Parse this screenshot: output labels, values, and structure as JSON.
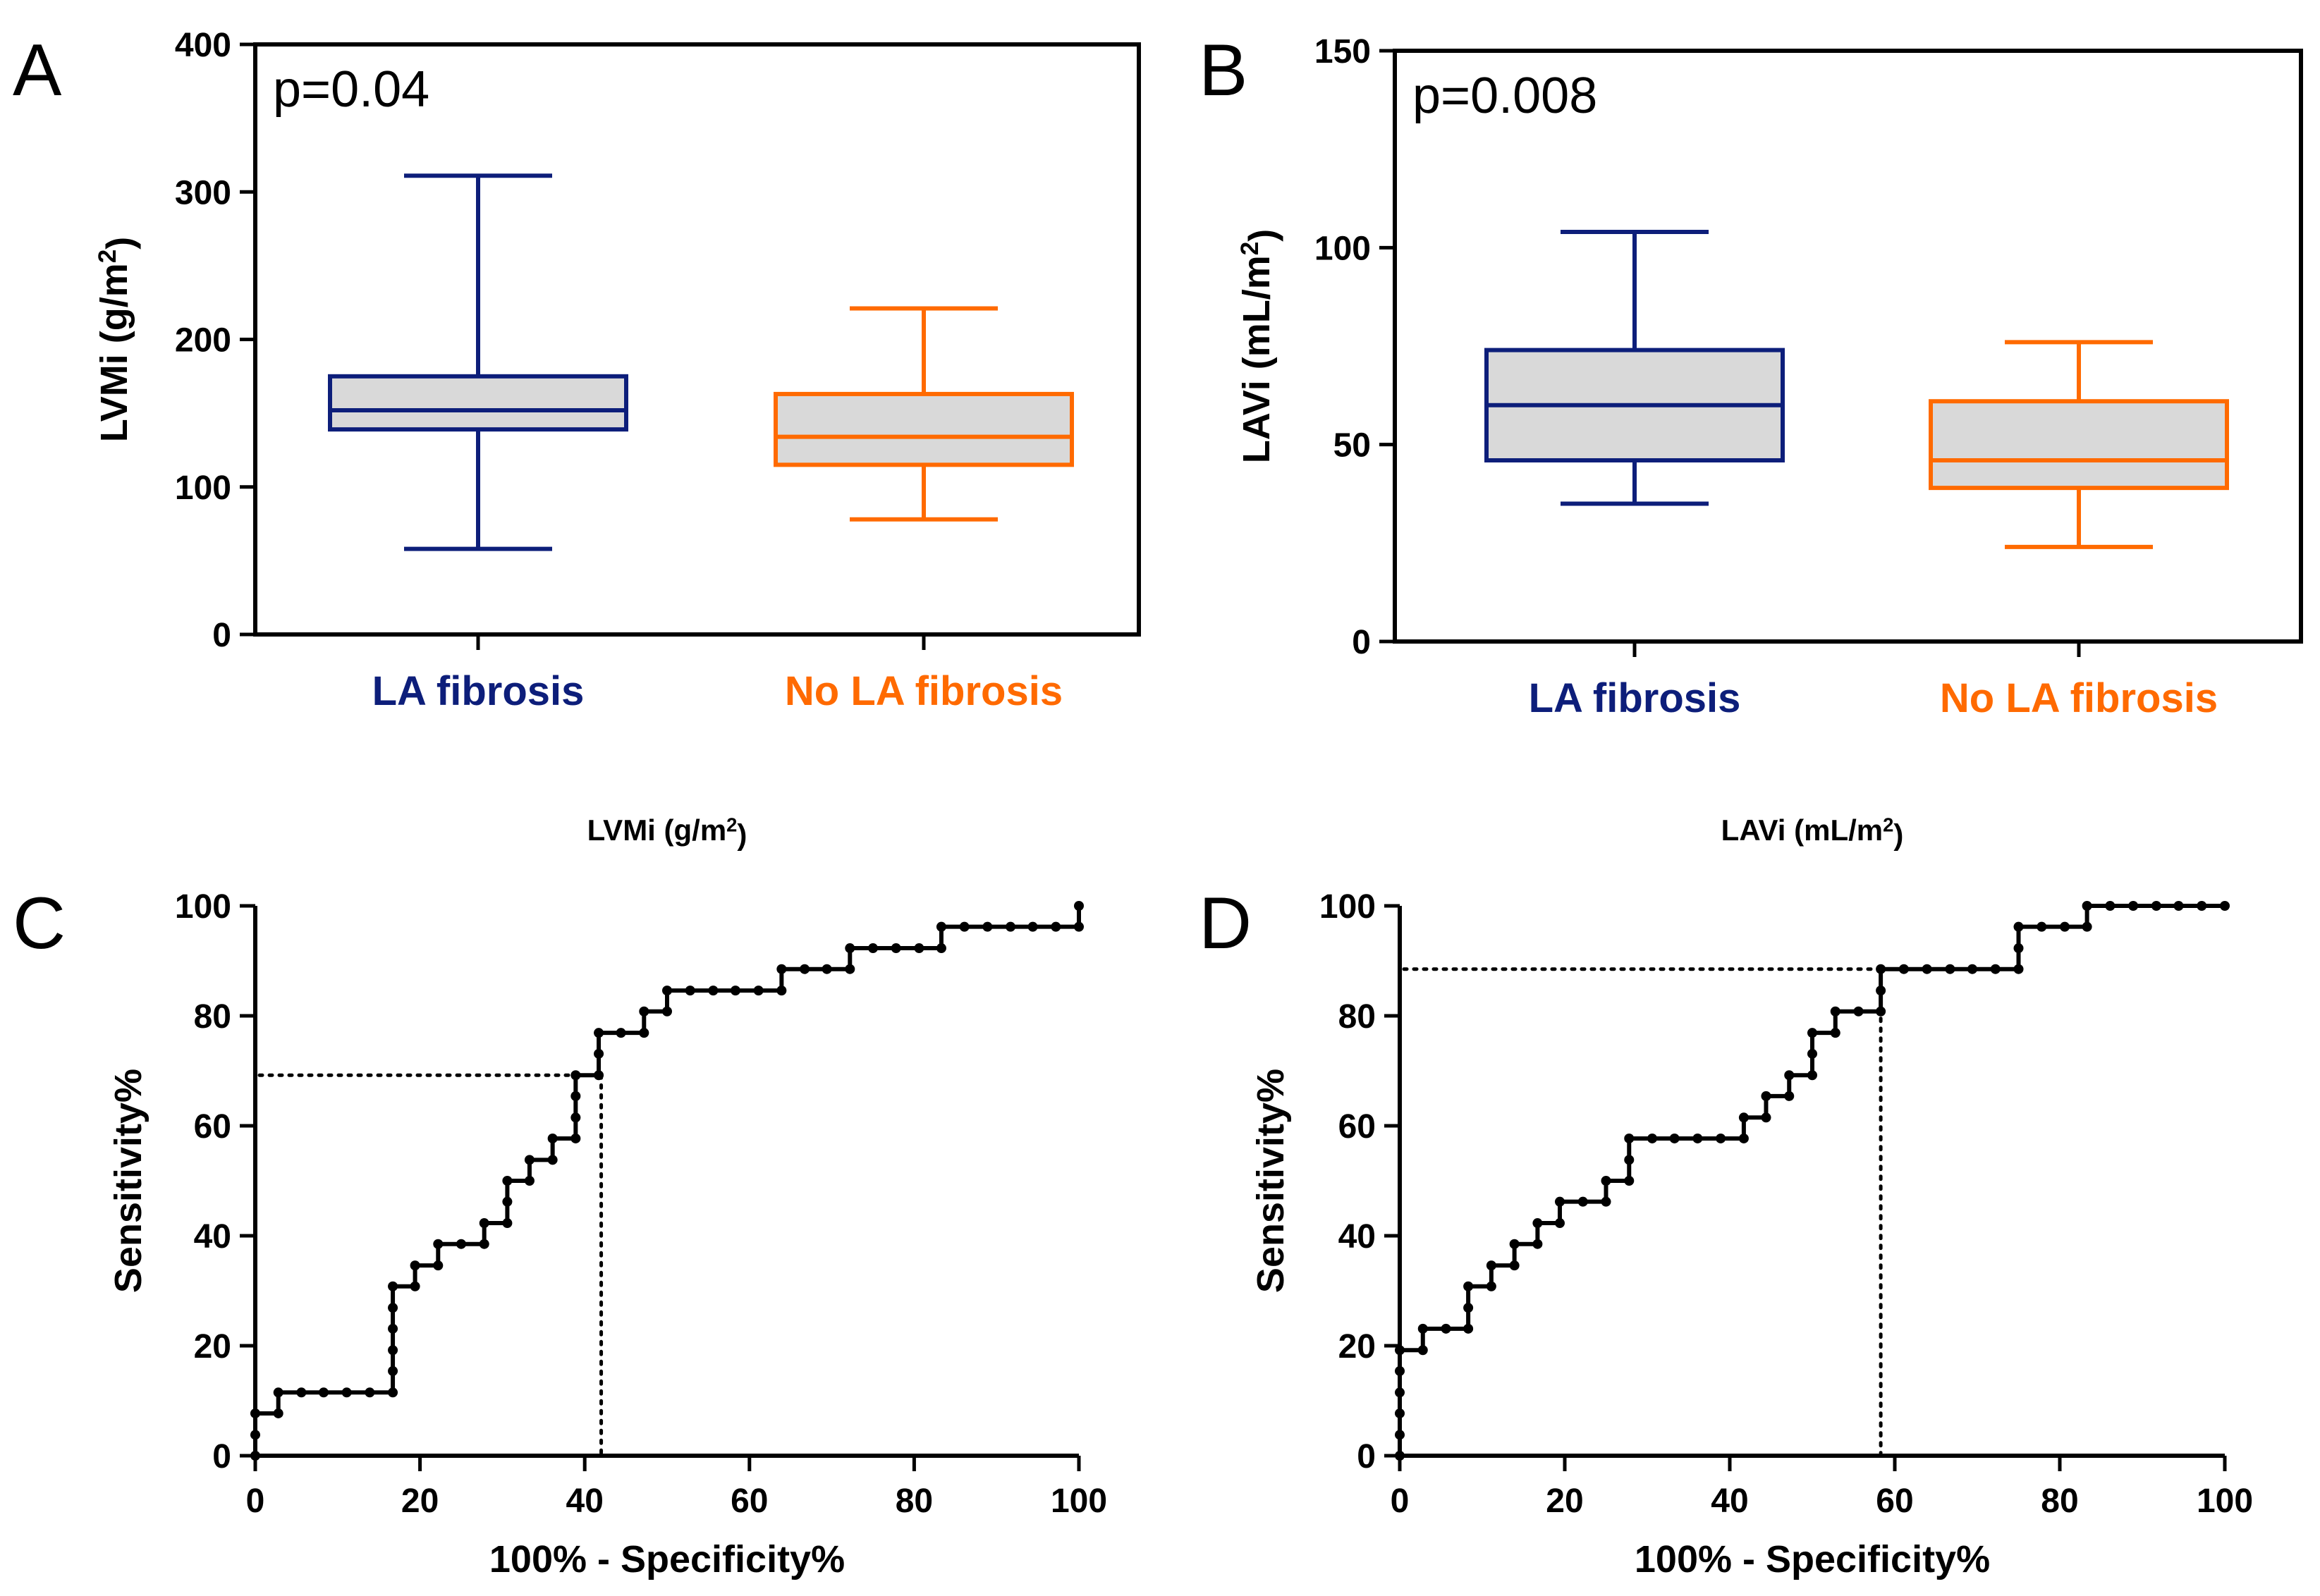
{
  "chart_data": [
    {
      "panel": "A",
      "type": "box",
      "ylabel": "LVMi (g/m",
      "ylabel_sup": "2",
      "ylabel_end": ")",
      "ylim": [
        0,
        400
      ],
      "yticks": [
        0,
        100,
        200,
        300,
        400
      ],
      "annotation": "p=0.04",
      "series": [
        {
          "name": "LA fibrosis",
          "color": "#0d1e7a",
          "min": 58,
          "q1": 139,
          "median": 152,
          "q3": 175,
          "max": 311
        },
        {
          "name": "No LA fibrosis",
          "color": "#ff6a00",
          "min": 78,
          "q1": 115,
          "median": 134,
          "q3": 163,
          "max": 221
        }
      ]
    },
    {
      "panel": "B",
      "type": "box",
      "ylabel": "LAVi (mL/m",
      "ylabel_sup": "2",
      "ylabel_end": ")",
      "ylim": [
        0,
        150
      ],
      "yticks": [
        0,
        50,
        100,
        150
      ],
      "annotation": "p=0.008",
      "series": [
        {
          "name": "LA fibrosis",
          "color": "#0d1e7a",
          "min": 35,
          "q1": 46,
          "median": 60,
          "q3": 74,
          "max": 104
        },
        {
          "name": "No LA fibrosis",
          "color": "#ff6a00",
          "min": 24,
          "q1": 39,
          "median": 46,
          "q3": 61,
          "max": 76
        }
      ]
    },
    {
      "panel": "C",
      "type": "line",
      "title": "LVMi (g/m",
      "title_sup": "2",
      "title_end": ")",
      "xlabel": "100% - Specificity%",
      "ylabel": "Sensitivity%",
      "xlim": [
        0,
        100
      ],
      "ylim": [
        0,
        100
      ],
      "xticks": [
        0,
        20,
        40,
        60,
        80,
        100
      ],
      "yticks": [
        0,
        20,
        40,
        60,
        80,
        100
      ],
      "cutoff": {
        "x": 42,
        "y": 69.2
      },
      "steps": [
        {
          "x": 0,
          "ys": [
            0,
            3.8,
            7.7
          ]
        },
        {
          "x": 2.8,
          "ys": [
            7.7,
            11.5
          ]
        },
        {
          "x": 5.6,
          "ys": [
            11.5
          ]
        },
        {
          "x": 8.3,
          "ys": [
            11.5
          ]
        },
        {
          "x": 11.1,
          "ys": [
            11.5
          ]
        },
        {
          "x": 13.9,
          "ys": [
            11.5
          ]
        },
        {
          "x": 16.7,
          "ys": [
            11.5,
            15.4,
            19.2,
            23.1,
            26.9,
            30.8
          ]
        },
        {
          "x": 19.4,
          "ys": [
            30.8,
            34.6
          ]
        },
        {
          "x": 22.2,
          "ys": [
            34.6,
            38.5
          ]
        },
        {
          "x": 25,
          "ys": [
            38.5
          ]
        },
        {
          "x": 27.8,
          "ys": [
            38.5,
            42.3
          ]
        },
        {
          "x": 30.6,
          "ys": [
            42.3,
            46.2,
            50
          ]
        },
        {
          "x": 33.3,
          "ys": [
            50,
            53.8
          ]
        },
        {
          "x": 36.1,
          "ys": [
            53.8,
            57.7
          ]
        },
        {
          "x": 38.9,
          "ys": [
            57.7,
            61.5,
            65.4,
            69.2
          ]
        },
        {
          "x": 41.7,
          "ys": [
            69.2,
            73.1,
            76.9
          ]
        },
        {
          "x": 44.4,
          "ys": [
            76.9
          ]
        },
        {
          "x": 47.2,
          "ys": [
            76.9,
            80.8
          ]
        },
        {
          "x": 50,
          "ys": [
            80.8,
            84.6
          ]
        },
        {
          "x": 52.8,
          "ys": [
            84.6
          ]
        },
        {
          "x": 55.6,
          "ys": [
            84.6
          ]
        },
        {
          "x": 58.3,
          "ys": [
            84.6
          ]
        },
        {
          "x": 61.1,
          "ys": [
            84.6
          ]
        },
        {
          "x": 63.9,
          "ys": [
            84.6,
            88.5
          ]
        },
        {
          "x": 66.7,
          "ys": [
            88.5
          ]
        },
        {
          "x": 69.4,
          "ys": [
            88.5
          ]
        },
        {
          "x": 72.2,
          "ys": [
            88.5,
            92.3
          ]
        },
        {
          "x": 75,
          "ys": [
            92.3
          ]
        },
        {
          "x": 77.8,
          "ys": [
            92.3
          ]
        },
        {
          "x": 80.6,
          "ys": [
            92.3
          ]
        },
        {
          "x": 83.3,
          "ys": [
            92.3,
            96.2
          ]
        },
        {
          "x": 86.1,
          "ys": [
            96.2
          ]
        },
        {
          "x": 88.9,
          "ys": [
            96.2
          ]
        },
        {
          "x": 91.7,
          "ys": [
            96.2
          ]
        },
        {
          "x": 94.4,
          "ys": [
            96.2
          ]
        },
        {
          "x": 97.2,
          "ys": [
            96.2
          ]
        },
        {
          "x": 100,
          "ys": [
            96.2,
            100
          ]
        }
      ]
    },
    {
      "panel": "D",
      "type": "line",
      "title": "LAVi (mL/m",
      "title_sup": "2",
      "title_end": ")",
      "xlabel": "100% - Specificity%",
      "ylabel": "Sensitivity%",
      "xlim": [
        0,
        100
      ],
      "ylim": [
        0,
        100
      ],
      "xticks": [
        0,
        20,
        40,
        60,
        80,
        100
      ],
      "yticks": [
        0,
        20,
        40,
        60,
        80,
        100
      ],
      "cutoff": {
        "x": 58.3,
        "y": 88.5
      },
      "steps": [
        {
          "x": 0,
          "ys": [
            0,
            3.8,
            7.7,
            11.5,
            15.4,
            19.2
          ]
        },
        {
          "x": 2.8,
          "ys": [
            19.2,
            23.1
          ]
        },
        {
          "x": 5.6,
          "ys": [
            23.1
          ]
        },
        {
          "x": 8.3,
          "ys": [
            23.1,
            26.9,
            30.8
          ]
        },
        {
          "x": 11.1,
          "ys": [
            30.8,
            34.6
          ]
        },
        {
          "x": 13.9,
          "ys": [
            34.6,
            38.5
          ]
        },
        {
          "x": 16.7,
          "ys": [
            38.5,
            42.3
          ]
        },
        {
          "x": 19.4,
          "ys": [
            42.3,
            46.2
          ]
        },
        {
          "x": 22.2,
          "ys": [
            46.2
          ]
        },
        {
          "x": 25,
          "ys": [
            46.2,
            50
          ]
        },
        {
          "x": 27.8,
          "ys": [
            50,
            53.8,
            57.7
          ]
        },
        {
          "x": 30.6,
          "ys": [
            57.7
          ]
        },
        {
          "x": 33.3,
          "ys": [
            57.7
          ]
        },
        {
          "x": 36.1,
          "ys": [
            57.7
          ]
        },
        {
          "x": 38.9,
          "ys": [
            57.7
          ]
        },
        {
          "x": 41.7,
          "ys": [
            57.7,
            61.5
          ]
        },
        {
          "x": 44.4,
          "ys": [
            61.5,
            65.4
          ]
        },
        {
          "x": 47.2,
          "ys": [
            65.4,
            69.2
          ]
        },
        {
          "x": 50,
          "ys": [
            69.2,
            73.1,
            76.9
          ]
        },
        {
          "x": 52.8,
          "ys": [
            76.9,
            80.8
          ]
        },
        {
          "x": 55.6,
          "ys": [
            80.8
          ]
        },
        {
          "x": 58.3,
          "ys": [
            80.8,
            84.6,
            88.5
          ]
        },
        {
          "x": 61.1,
          "ys": [
            88.5
          ]
        },
        {
          "x": 63.9,
          "ys": [
            88.5
          ]
        },
        {
          "x": 66.7,
          "ys": [
            88.5
          ]
        },
        {
          "x": 69.4,
          "ys": [
            88.5
          ]
        },
        {
          "x": 72.2,
          "ys": [
            88.5
          ]
        },
        {
          "x": 75,
          "ys": [
            88.5,
            92.3,
            96.2
          ]
        },
        {
          "x": 77.8,
          "ys": [
            96.2
          ]
        },
        {
          "x": 80.6,
          "ys": [
            96.2
          ]
        },
        {
          "x": 83.3,
          "ys": [
            96.2,
            100
          ]
        },
        {
          "x": 86.1,
          "ys": [
            100
          ]
        },
        {
          "x": 88.9,
          "ys": [
            100
          ]
        },
        {
          "x": 91.7,
          "ys": [
            100
          ]
        },
        {
          "x": 94.4,
          "ys": [
            100
          ]
        },
        {
          "x": 97.2,
          "ys": [
            100
          ]
        },
        {
          "x": 100,
          "ys": [
            100
          ]
        }
      ]
    }
  ]
}
